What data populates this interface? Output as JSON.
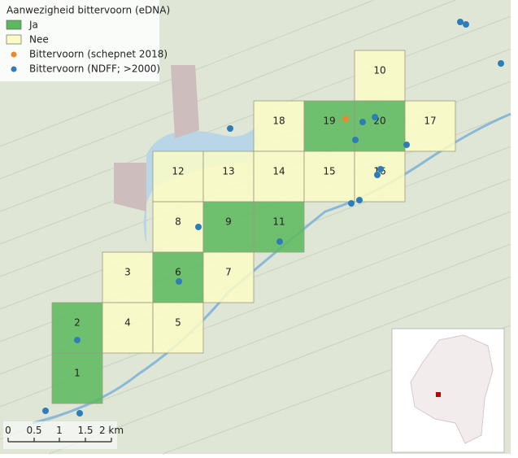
{
  "legend": {
    "title": "Aanwezigheid bittervoorn (eDNA)",
    "items": [
      {
        "name": "Ja",
        "color": "#5cb85c"
      },
      {
        "name": "Nee",
        "color": "#fbfbc6"
      },
      {
        "name": "Bittervoorn (schepnet 2018)",
        "color": "#e8892f"
      },
      {
        "name": "Bittervoorn (NDFF; >2000)",
        "color": "#2e7db8"
      }
    ]
  },
  "cells": [
    {
      "label": "10",
      "presence": "Nee"
    },
    {
      "label": "18",
      "presence": "Nee"
    },
    {
      "label": "19",
      "presence": "Ja"
    },
    {
      "label": "20",
      "presence": "Ja"
    },
    {
      "label": "17",
      "presence": "Nee"
    },
    {
      "label": "12",
      "presence": "Nee"
    },
    {
      "label": "13",
      "presence": "Nee"
    },
    {
      "label": "14",
      "presence": "Nee"
    },
    {
      "label": "15",
      "presence": "Nee"
    },
    {
      "label": "16",
      "presence": "Nee"
    },
    {
      "label": "8",
      "presence": "Nee"
    },
    {
      "label": "9",
      "presence": "Ja"
    },
    {
      "label": "11",
      "presence": "Ja"
    },
    {
      "label": "3",
      "presence": "Nee"
    },
    {
      "label": "6",
      "presence": "Ja"
    },
    {
      "label": "7",
      "presence": "Nee"
    },
    {
      "label": "2",
      "presence": "Ja"
    },
    {
      "label": "4",
      "presence": "Nee"
    },
    {
      "label": "5",
      "presence": "Nee"
    },
    {
      "label": "1",
      "presence": "Ja"
    }
  ],
  "scale_bar": {
    "labels": [
      "0",
      "0.5",
      "1",
      "1.5",
      "2 km"
    ]
  }
}
